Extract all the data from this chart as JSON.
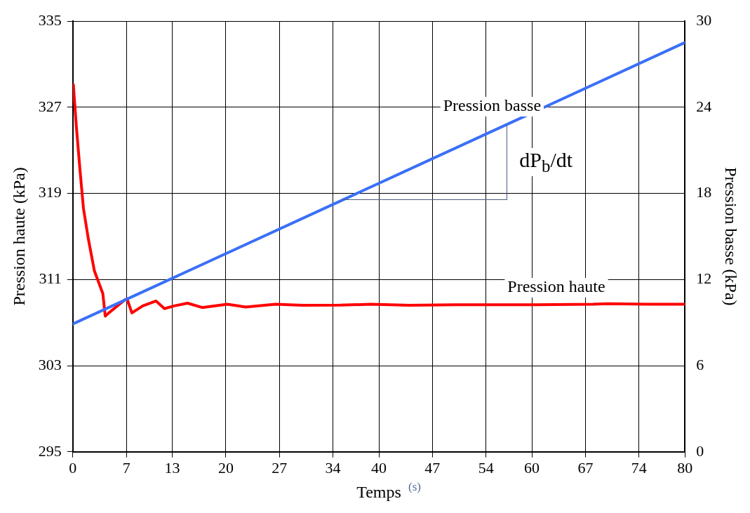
{
  "chart_data": {
    "type": "line",
    "xlabel": "Temps",
    "ylabel": "Pression haute (kPa)",
    "y2label": "Pression basse (kPa)",
    "annotations": [
      "(s)",
      "dP$_{b}$/dt"
    ],
    "xlim": [
      0,
      80
    ],
    "xticks": [
      0,
      7,
      13,
      20,
      27,
      34,
      40,
      47,
      54,
      60,
      67,
      74,
      80
    ],
    "ylim": [
      295,
      335
    ],
    "yticks": [
      295,
      303,
      311,
      319,
      327,
      335
    ],
    "y2lim": [
      0,
      30
    ],
    "y2ticks": [
      0,
      6,
      12,
      18,
      24,
      30
    ],
    "grid": true,
    "legend": false,
    "series": [
      {
        "name": "Pression basse",
        "color": "#3a6ff7",
        "axis": "y2",
        "x": [
          0,
          80
        ],
        "values": [
          8.9,
          28.5
        ]
      },
      {
        "name": "Pression haute",
        "color": "#ff0000",
        "x": [
          0.07,
          0.45,
          0.92,
          1.39,
          2.02,
          2.82,
          3.92,
          4.24,
          4.7,
          6.77,
          7.09,
          7.72,
          9.14,
          10.88,
          11.98,
          13.25,
          14.99,
          16.9,
          20.2,
          22.6,
          26.5,
          30,
          35,
          39,
          44,
          50,
          60,
          68,
          70,
          75,
          80
        ],
        "values": [
          329.1,
          325.3,
          321.3,
          317.6,
          314.8,
          311.8,
          309.7,
          307.6,
          307.9,
          309.1,
          309.2,
          307.9,
          308.55,
          309.0,
          308.3,
          308.55,
          308.8,
          308.4,
          308.7,
          308.45,
          308.7,
          308.6,
          308.62,
          308.7,
          308.6,
          308.65,
          308.65,
          308.7,
          308.75,
          308.7,
          308.7
        ]
      }
    ]
  }
}
